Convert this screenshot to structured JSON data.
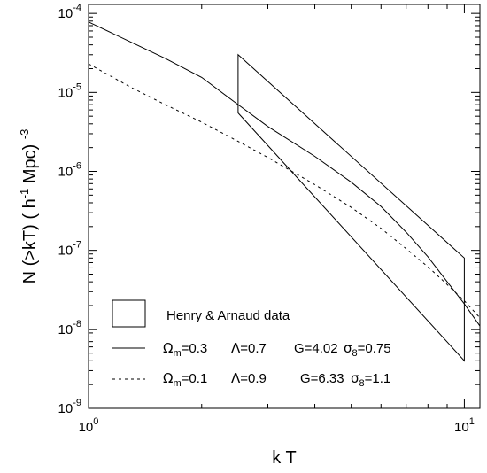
{
  "chart_data": {
    "type": "line",
    "xlabel": "k T",
    "ylabel": "N (>kT)  ( h",
    "ylabel_sup1": "-1",
    "ylabel_mid": " Mpc) ",
    "ylabel_sup2": "-3",
    "xscale": "log",
    "yscale": "log",
    "xlim": [
      1.0,
      11.0
    ],
    "ylim": [
      1e-09,
      0.00013
    ],
    "xticks": [
      {
        "value": 1,
        "base": "10",
        "exp": "0"
      },
      {
        "value": 10,
        "base": "10",
        "exp": "1"
      }
    ],
    "yticks": [
      {
        "value": 1e-09,
        "base": "10",
        "exp": "-9"
      },
      {
        "value": 1e-08,
        "base": "10",
        "exp": "-8"
      },
      {
        "value": 1e-07,
        "base": "10",
        "exp": "-7"
      },
      {
        "value": 1e-06,
        "base": "10",
        "exp": "-6"
      },
      {
        "value": 1e-05,
        "base": "10",
        "exp": "-5"
      },
      {
        "value": 0.0001,
        "base": "10",
        "exp": "-4"
      }
    ],
    "grid": false,
    "legend_position": "bottom-left",
    "box": {
      "name": "Henry & Arnaud  data",
      "points": [
        [
          2.5,
          3e-05
        ],
        [
          10.0,
          8e-08
        ],
        [
          10.0,
          4e-09
        ],
        [
          2.5,
          5.5e-06
        ]
      ]
    },
    "series": [
      {
        "style": "solid",
        "legend": {
          "omega": "Ω",
          "omega_sub": "m",
          "omega_val": "=0.3",
          "lambda": "Λ",
          "lambda_val": "=0.7",
          "g": "G=4.02",
          "sigma": "σ",
          "sigma_sub": "8",
          "sigma_val": "=0.75"
        },
        "x": [
          1.0,
          1.3,
          1.6,
          2.0,
          2.5,
          3.0,
          4.0,
          5.0,
          6.0,
          7.0,
          8.0,
          9.0,
          10.0,
          11.0
        ],
        "y": [
          7.8e-05,
          4.3e-05,
          2.7e-05,
          1.55e-05,
          7e-06,
          3.7e-06,
          1.55e-06,
          7.3e-07,
          3.6e-07,
          1.7e-07,
          8.3e-08,
          4e-08,
          2.1e-08,
          1.1e-08
        ]
      },
      {
        "style": "dashed",
        "legend": {
          "omega": "Ω",
          "omega_sub": "m",
          "omega_val": "=0.1",
          "lambda": "Λ",
          "lambda_val": "=0.9",
          "g": "G=6.33",
          "sigma": "σ",
          "sigma_sub": "8",
          "sigma_val": "=1.1"
        },
        "x": [
          1.0,
          1.3,
          1.6,
          2.0,
          2.5,
          3.0,
          4.0,
          5.0,
          6.0,
          7.0,
          8.0,
          9.0,
          10.0,
          11.0
        ],
        "y": [
          2.3e-05,
          1.15e-05,
          7e-06,
          4.2e-06,
          2.4e-06,
          1.5e-06,
          6.8e-07,
          3.5e-07,
          1.9e-07,
          1.05e-07,
          6.2e-08,
          3.7e-08,
          2.3e-08,
          1.4e-08
        ]
      }
    ]
  }
}
